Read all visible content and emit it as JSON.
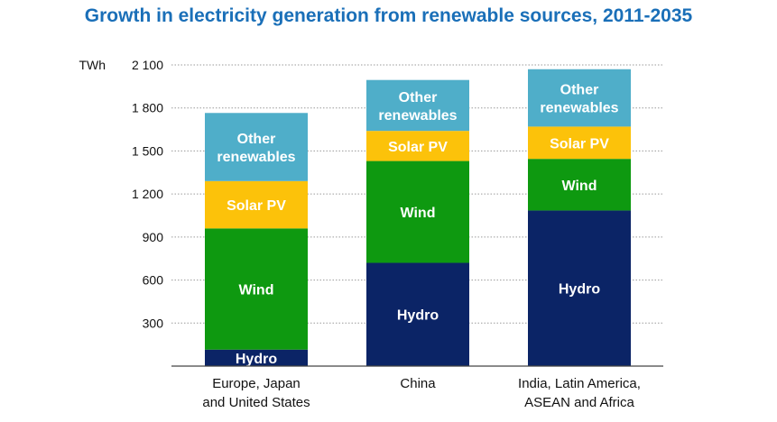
{
  "chart_data": {
    "type": "bar",
    "stacked": true,
    "title": "Growth in electricity generation from renewable sources, 2011-2035",
    "unit": "TWh",
    "ylim": [
      0,
      2100
    ],
    "yticks": [
      {
        "value": 300,
        "label": "300"
      },
      {
        "value": 600,
        "label": "600"
      },
      {
        "value": 900,
        "label": "900"
      },
      {
        "value": 1200,
        "label": "1 200"
      },
      {
        "value": 1500,
        "label": "1 500"
      },
      {
        "value": 1800,
        "label": "1 800"
      },
      {
        "value": 2100,
        "label": "2 100"
      }
    ],
    "grid": true,
    "categories": [
      [
        "Europe, Japan",
        "and United States"
      ],
      [
        "China"
      ],
      [
        "India, Latin America,",
        "ASEAN and Africa"
      ]
    ],
    "series": [
      {
        "name": "Hydro",
        "label": [
          "Hydro"
        ],
        "color": "#0b2466",
        "text_color": "#ffffff",
        "values": [
          115,
          720,
          1085
        ]
      },
      {
        "name": "Wind",
        "label": [
          "Wind"
        ],
        "color": "#0e9910",
        "text_color": "#ffffff",
        "values": [
          845,
          710,
          360
        ]
      },
      {
        "name": "Solar PV",
        "label": [
          "Solar PV"
        ],
        "color": "#fcc20a",
        "text_color": "#ffffff",
        "values": [
          330,
          210,
          225
        ]
      },
      {
        "name": "Other renewables",
        "label": [
          "Other",
          "renewables"
        ],
        "color": "#4faec9",
        "text_color": "#ffffff",
        "values": [
          475,
          355,
          400
        ]
      }
    ]
  }
}
